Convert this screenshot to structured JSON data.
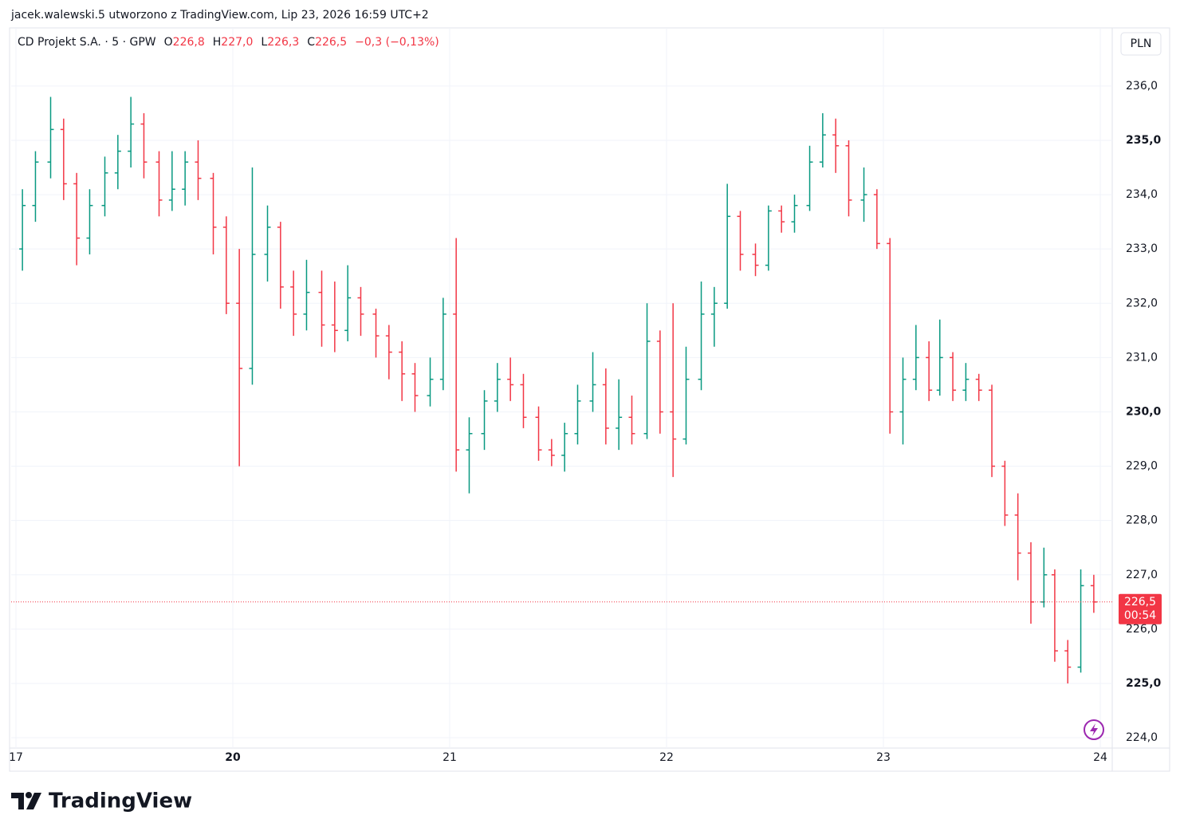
{
  "attribution": "jacek.walewski.5 utworzono z TradingView.com, Lip 23, 2026 16:59 UTC+2",
  "brand": "TradingView",
  "chart_data": {
    "type": "ohlc",
    "title": "CD Projekt S.A. · 5 · GPW",
    "header": [
      {
        "key": "O",
        "value": "226,8"
      },
      {
        "key": "H",
        "value": "227,0"
      },
      {
        "key": "L",
        "value": "226,3"
      },
      {
        "key": "C",
        "value": "226,5"
      },
      {
        "key": "",
        "value": "−0,3 (−0,13%)"
      }
    ],
    "currency": "PLN",
    "up_color": "#089981",
    "down_color": "#f23645",
    "grid": true,
    "x": [
      0.03,
      0.09,
      0.16,
      0.22,
      0.28,
      0.34,
      0.41,
      0.47,
      0.53,
      0.59,
      0.66,
      0.72,
      0.78,
      0.84,
      0.91,
      0.97,
      1.03,
      1.09,
      1.16,
      1.22,
      1.28,
      1.34,
      1.41,
      1.47,
      1.53,
      1.59,
      1.66,
      1.72,
      1.78,
      1.84,
      1.91,
      1.97,
      2.03,
      2.09,
      2.16,
      2.22,
      2.28,
      2.34,
      2.41,
      2.47,
      2.53,
      2.59,
      2.66,
      2.72,
      2.78,
      2.84,
      2.91,
      2.97,
      3.03,
      3.09,
      3.16,
      3.22,
      3.28,
      3.34,
      3.41,
      3.47,
      3.53,
      3.59,
      3.66,
      3.72,
      3.78,
      3.84,
      3.91,
      3.97,
      4.03,
      4.09,
      4.15,
      4.21,
      4.26,
      4.32,
      4.38,
      4.44,
      4.5,
      4.56,
      4.62,
      4.68,
      4.74,
      4.79,
      4.85,
      4.91,
      4.97
    ],
    "open": [
      233.0,
      233.8,
      234.6,
      235.2,
      234.2,
      233.2,
      233.8,
      234.4,
      234.8,
      235.3,
      234.6,
      233.9,
      234.1,
      234.6,
      234.3,
      233.4,
      232.0,
      230.8,
      232.9,
      233.4,
      232.3,
      231.8,
      232.2,
      231.6,
      231.5,
      232.1,
      231.8,
      231.4,
      231.1,
      230.7,
      230.3,
      230.6,
      231.8,
      229.3,
      229.6,
      230.2,
      230.6,
      230.5,
      229.9,
      229.3,
      229.2,
      229.6,
      230.2,
      230.5,
      229.7,
      229.9,
      229.6,
      231.3,
      230.0,
      229.5,
      230.6,
      231.8,
      232.0,
      233.6,
      232.9,
      232.7,
      233.7,
      233.5,
      233.8,
      234.6,
      235.1,
      234.9,
      233.9,
      234.0,
      233.1,
      230.0,
      230.6,
      231.0,
      230.4,
      231.0,
      230.4,
      230.6,
      230.4,
      229.0,
      228.1,
      227.4,
      226.5,
      227.0,
      225.6,
      225.3,
      226.8
    ],
    "high": [
      234.1,
      234.8,
      235.8,
      235.4,
      234.4,
      234.1,
      234.7,
      235.1,
      235.8,
      235.5,
      234.8,
      234.8,
      234.8,
      235.0,
      234.4,
      233.6,
      233.0,
      234.5,
      233.8,
      233.5,
      232.6,
      232.8,
      232.6,
      232.4,
      232.7,
      232.3,
      231.9,
      231.6,
      231.3,
      230.9,
      231.0,
      232.1,
      233.2,
      229.9,
      230.4,
      230.9,
      231.0,
      230.7,
      230.1,
      229.5,
      229.8,
      230.5,
      231.1,
      230.8,
      230.6,
      230.3,
      232.0,
      231.5,
      232.0,
      231.2,
      232.4,
      232.3,
      234.2,
      233.7,
      233.1,
      233.8,
      233.8,
      234.0,
      234.9,
      235.5,
      235.4,
      235.0,
      234.5,
      234.1,
      233.2,
      231.0,
      231.6,
      231.3,
      231.7,
      231.1,
      230.9,
      230.7,
      230.5,
      229.1,
      228.5,
      227.6,
      227.5,
      227.1,
      225.8,
      227.1,
      227.0
    ],
    "low": [
      232.6,
      233.5,
      234.3,
      233.9,
      232.7,
      232.9,
      233.6,
      234.1,
      234.5,
      234.3,
      233.6,
      233.7,
      233.8,
      233.9,
      232.9,
      231.8,
      229.0,
      230.5,
      232.4,
      231.9,
      231.4,
      231.5,
      231.2,
      231.1,
      231.3,
      231.4,
      231.0,
      230.6,
      230.2,
      230.0,
      230.1,
      230.4,
      228.9,
      228.5,
      229.3,
      230.0,
      230.2,
      229.7,
      229.1,
      229.0,
      228.9,
      229.4,
      230.0,
      229.4,
      229.3,
      229.4,
      229.5,
      229.6,
      228.8,
      229.4,
      230.4,
      231.2,
      231.9,
      232.6,
      232.5,
      232.6,
      233.3,
      233.3,
      233.7,
      234.5,
      234.4,
      233.6,
      233.5,
      233.0,
      229.6,
      229.4,
      230.4,
      230.2,
      230.3,
      230.2,
      230.2,
      230.2,
      228.8,
      227.9,
      226.9,
      226.1,
      226.4,
      225.4,
      225.0,
      225.2,
      226.3
    ],
    "close": [
      233.8,
      234.6,
      235.2,
      234.2,
      233.2,
      233.8,
      234.4,
      234.8,
      235.3,
      234.6,
      233.9,
      234.1,
      234.6,
      234.3,
      233.4,
      232.0,
      230.8,
      232.9,
      233.4,
      232.3,
      231.8,
      232.2,
      231.6,
      231.5,
      232.1,
      231.8,
      231.4,
      231.1,
      230.7,
      230.3,
      230.6,
      231.8,
      229.3,
      229.6,
      230.2,
      230.6,
      230.5,
      229.9,
      229.3,
      229.2,
      229.6,
      230.2,
      230.5,
      229.7,
      229.9,
      229.6,
      231.3,
      230.0,
      229.5,
      230.6,
      231.8,
      232.0,
      233.6,
      232.9,
      232.7,
      233.7,
      233.5,
      233.8,
      234.6,
      235.1,
      234.9,
      233.9,
      234.0,
      233.1,
      230.0,
      230.6,
      231.0,
      230.4,
      231.0,
      230.4,
      230.6,
      230.4,
      229.0,
      228.1,
      227.4,
      226.5,
      227.0,
      225.6,
      225.3,
      226.8,
      226.5
    ],
    "xlim": [
      -0.022,
      5.055
    ],
    "ylim": [
      223.81,
      237.07
    ],
    "xticks": [
      {
        "value": 0,
        "label": "17"
      },
      {
        "value": 1,
        "label": "20"
      },
      {
        "value": 2,
        "label": "21"
      },
      {
        "value": 3,
        "label": "22"
      },
      {
        "value": 4,
        "label": "23"
      },
      {
        "value": 5,
        "label": "24"
      }
    ],
    "yticks": [
      {
        "value": 224,
        "label": "224,0"
      },
      {
        "value": 225,
        "label": "225,0"
      },
      {
        "value": 226,
        "label": "226,0"
      },
      {
        "value": 227,
        "label": "227,0"
      },
      {
        "value": 228,
        "label": "228,0"
      },
      {
        "value": 229,
        "label": "229,0"
      },
      {
        "value": 230,
        "label": "230,0"
      },
      {
        "value": 231,
        "label": "231,0"
      },
      {
        "value": 232,
        "label": "232,0"
      },
      {
        "value": 233,
        "label": "233,0"
      },
      {
        "value": 234,
        "label": "234,0"
      },
      {
        "value": 235,
        "label": "235,0"
      },
      {
        "value": 236,
        "label": "236,0"
      }
    ],
    "last_price": {
      "value": 226.5,
      "label": "226,5",
      "countdown": "00:54"
    }
  }
}
